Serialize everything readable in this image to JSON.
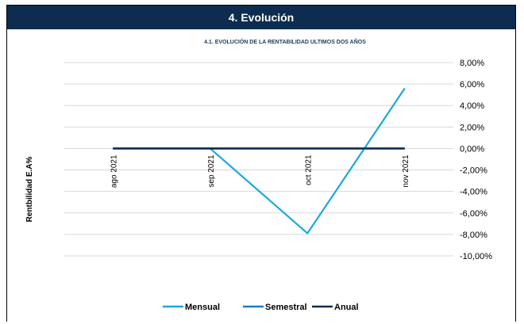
{
  "header": {
    "title": "4. Evolución"
  },
  "chart_data": {
    "type": "line",
    "title": "4.1. EVOLUCIÓN DE LA RENTABILIDAD ULTIMOS DOS AÑOS",
    "ylabel": "Rentbilidad  E.A%",
    "xlabel": "",
    "categories": [
      "ago 2021",
      "sep 2021",
      "oct 2021",
      "nov 2021"
    ],
    "ylim": [
      -10,
      8
    ],
    "ytick_labels": [
      "8,00%",
      "6,00%",
      "4,00%",
      "2,00%",
      "0,00%",
      "-2,00%",
      "-4,00%",
      "-6,00%",
      "-8,00%",
      "-10,00%"
    ],
    "ytick_values": [
      8,
      6,
      4,
      2,
      0,
      -2,
      -4,
      -6,
      -8,
      -10
    ],
    "legend_position": "bottom",
    "grid": true,
    "series": [
      {
        "name": "Mensual",
        "color": "#1ca7de",
        "values": [
          0,
          0,
          -7.9,
          5.6
        ]
      },
      {
        "name": "Semestral",
        "color": "#1b7bc0",
        "values": [
          0,
          0,
          0,
          0
        ]
      },
      {
        "name": "Anual",
        "color": "#0d2c4f",
        "values": [
          0,
          0,
          0,
          0
        ]
      }
    ]
  }
}
